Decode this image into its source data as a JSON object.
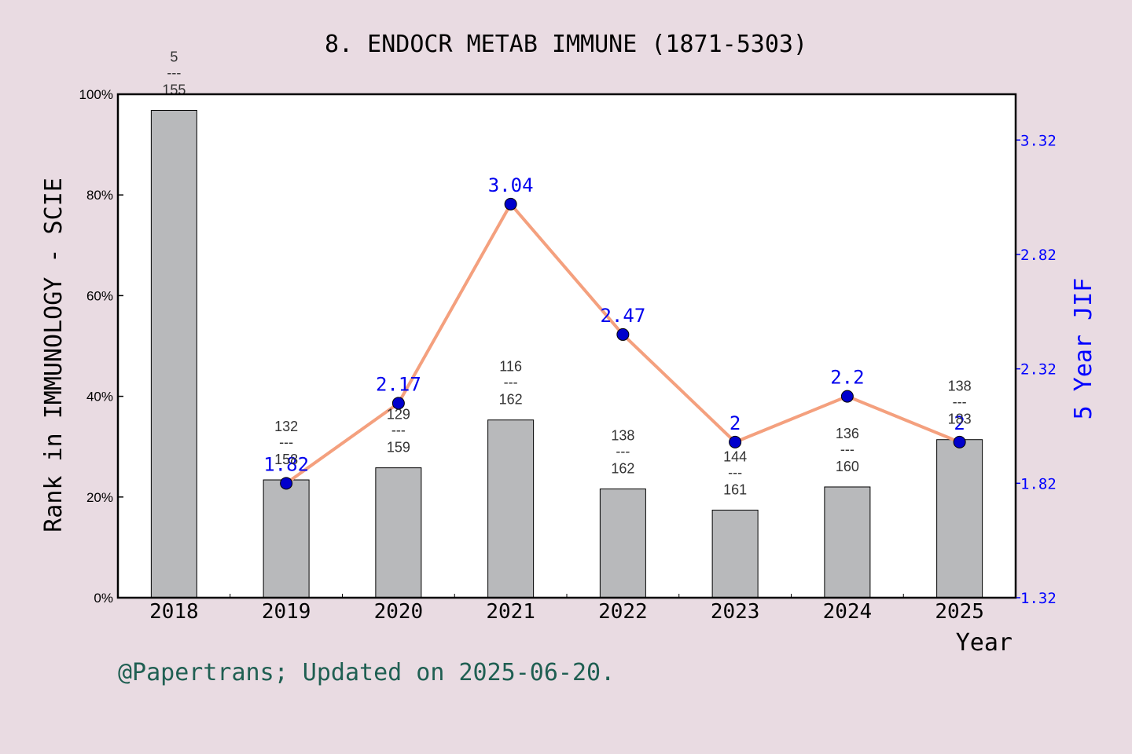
{
  "chart_data": {
    "type": "bar+line",
    "title": "8. ENDOCR METAB IMMUNE (1871-5303)",
    "xlabel": "Year",
    "ylabel": "Rank in IMMUNOLOGY - SCIE",
    "y2label": "5 Year JIF",
    "categories": [
      "2018",
      "2019",
      "2020",
      "2021",
      "2022",
      "2023",
      "2024",
      "2025"
    ],
    "ylim": [
      0,
      100
    ],
    "yticks": [
      "0%",
      "20%",
      "40%",
      "60%",
      "80%",
      "100%"
    ],
    "y2lim": [
      1.32,
      3.52
    ],
    "y2ticks": [
      "1.32",
      "1.82",
      "2.32",
      "2.82",
      "3.32"
    ],
    "bars": {
      "name": "Rank percentile",
      "values": [
        96.8,
        23.4,
        25.8,
        35.3,
        21.6,
        17.4,
        22.0,
        31.4
      ],
      "color": "#b8b9bb",
      "rank_labels": [
        {
          "rank": "5",
          "sep": "---",
          "total": "155"
        },
        {
          "rank": "132",
          "sep": "---",
          "total": "158"
        },
        {
          "rank": "129",
          "sep": "---",
          "total": "159"
        },
        {
          "rank": "116",
          "sep": "---",
          "total": "162"
        },
        {
          "rank": "138",
          "sep": "---",
          "total": "162"
        },
        {
          "rank": "144",
          "sep": "---",
          "total": "161"
        },
        {
          "rank": "136",
          "sep": "---",
          "total": "160"
        },
        {
          "rank": "138",
          "sep": "---",
          "total": "183"
        }
      ]
    },
    "line": {
      "name": "5 Year JIF",
      "x": [
        "2019",
        "2020",
        "2021",
        "2022",
        "2023",
        "2024",
        "2025"
      ],
      "values": [
        1.82,
        2.17,
        3.04,
        2.47,
        2.0,
        2.2,
        2.0
      ],
      "labels": [
        "1.82",
        "2.17",
        "3.04",
        "2.47",
        "2",
        "2.2",
        "2"
      ],
      "line_color": "#f4a07e",
      "marker_color": "#0000cc"
    },
    "grid": false
  },
  "footer": "@Papertrans; Updated on 2025-06-20."
}
